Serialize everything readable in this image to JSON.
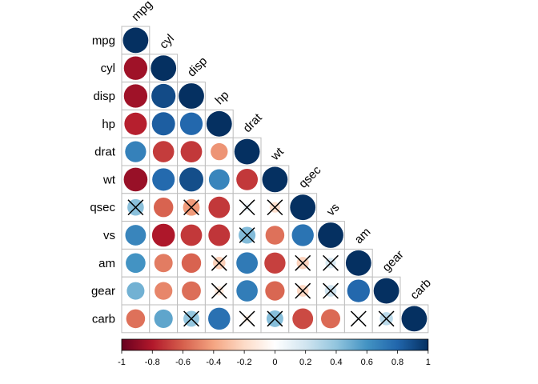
{
  "chart_data": {
    "type": "heatmap",
    "style": "lower-triangle correlation matrix, circles, significance crosses",
    "variables": [
      "mpg",
      "cyl",
      "disp",
      "hp",
      "drat",
      "wt",
      "qsec",
      "vs",
      "am",
      "gear",
      "carb"
    ],
    "matrix": [
      [
        1.0,
        -0.85,
        -0.85,
        -0.78,
        0.68,
        -0.87,
        0.42,
        0.66,
        0.6,
        0.48,
        -0.55
      ],
      [
        -0.85,
        1.0,
        0.9,
        0.83,
        -0.7,
        0.78,
        -0.59,
        -0.81,
        -0.52,
        -0.49,
        0.53
      ],
      [
        -0.85,
        0.9,
        1.0,
        0.79,
        -0.71,
        0.89,
        -0.43,
        -0.71,
        -0.59,
        -0.56,
        0.39
      ],
      [
        -0.78,
        0.83,
        0.79,
        1.0,
        -0.45,
        0.66,
        -0.71,
        -0.72,
        -0.24,
        -0.13,
        0.75
      ],
      [
        0.68,
        -0.7,
        -0.71,
        -0.45,
        1.0,
        -0.71,
        0.09,
        0.44,
        0.71,
        0.7,
        -0.09
      ],
      [
        -0.87,
        0.78,
        0.89,
        0.66,
        -0.71,
        1.0,
        -0.17,
        -0.55,
        -0.69,
        -0.58,
        0.43
      ],
      [
        0.42,
        -0.59,
        -0.43,
        -0.71,
        0.09,
        -0.17,
        1.0,
        0.74,
        -0.23,
        -0.21,
        -0.66
      ],
      [
        0.66,
        -0.81,
        -0.71,
        -0.72,
        0.44,
        -0.55,
        0.74,
        1.0,
        0.17,
        0.21,
        -0.57
      ],
      [
        0.6,
        -0.52,
        -0.59,
        -0.24,
        0.71,
        -0.69,
        -0.23,
        0.17,
        1.0,
        0.79,
        0.06
      ],
      [
        0.48,
        -0.49,
        -0.56,
        -0.13,
        0.7,
        -0.58,
        -0.21,
        0.21,
        0.79,
        1.0,
        0.27
      ],
      [
        -0.55,
        0.53,
        0.39,
        0.75,
        -0.09,
        0.43,
        -0.66,
        -0.57,
        0.06,
        0.27,
        1.0
      ]
    ],
    "crossed_cells": [
      [
        "qsec",
        "mpg"
      ],
      [
        "qsec",
        "disp"
      ],
      [
        "qsec",
        "drat"
      ],
      [
        "qsec",
        "wt"
      ],
      [
        "vs",
        "drat"
      ],
      [
        "am",
        "hp"
      ],
      [
        "am",
        "qsec"
      ],
      [
        "am",
        "vs"
      ],
      [
        "gear",
        "hp"
      ],
      [
        "gear",
        "qsec"
      ],
      [
        "gear",
        "vs"
      ],
      [
        "carb",
        "disp"
      ],
      [
        "carb",
        "drat"
      ],
      [
        "carb",
        "wt"
      ],
      [
        "carb",
        "am"
      ],
      [
        "carb",
        "gear"
      ]
    ],
    "colorbar": {
      "ticks": [
        "-1",
        "-0.8",
        "-0.6",
        "-0.4",
        "-0.2",
        "0",
        "0.2",
        "0.4",
        "0.6",
        "0.8",
        "1"
      ],
      "range": [
        -1,
        1
      ],
      "palette": [
        "#67001F",
        "#B2182B",
        "#D6604D",
        "#F4A582",
        "#FDDBC7",
        "#FFFFFF",
        "#D1E5F0",
        "#92C5DE",
        "#4393C3",
        "#2166AC",
        "#053061"
      ]
    },
    "grid": true,
    "legend_position": "bottom"
  }
}
